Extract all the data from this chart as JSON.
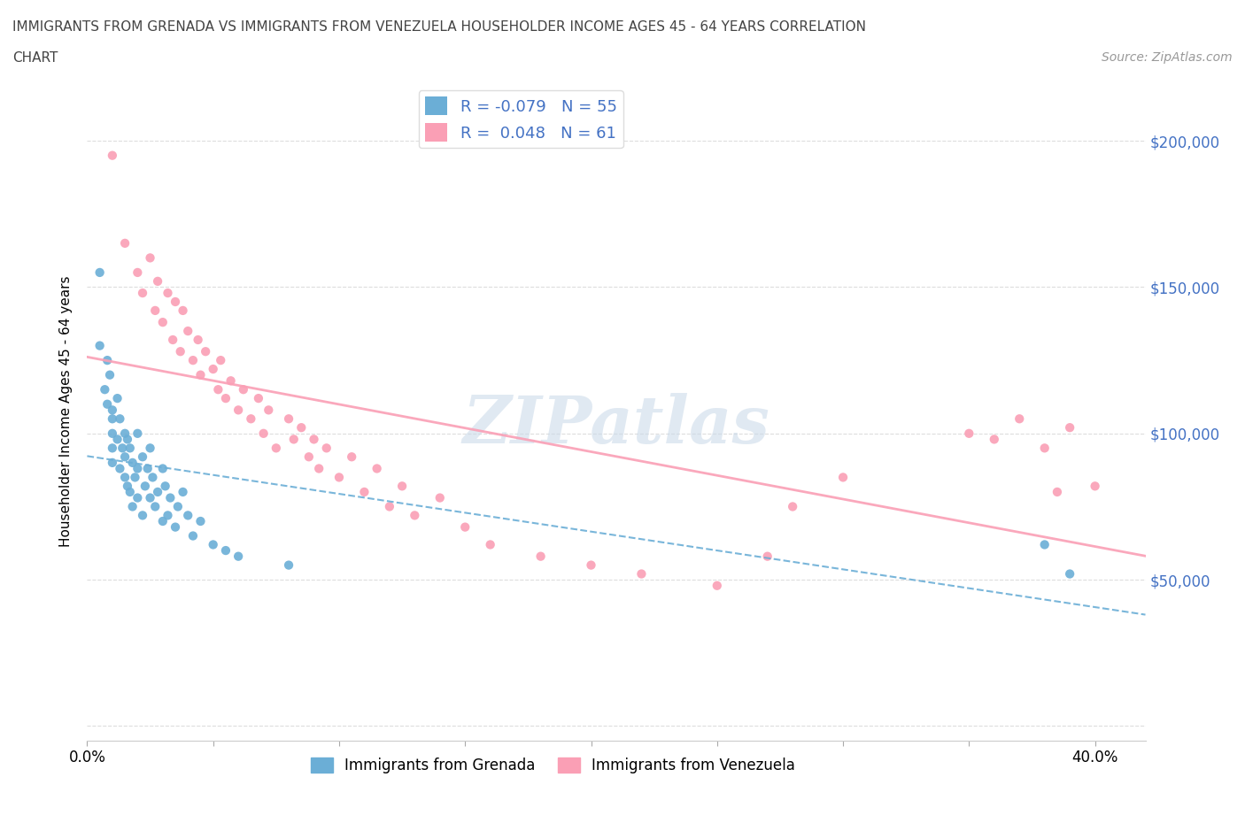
{
  "title_line1": "IMMIGRANTS FROM GRENADA VS IMMIGRANTS FROM VENEZUELA HOUSEHOLDER INCOME AGES 45 - 64 YEARS CORRELATION",
  "title_line2": "CHART",
  "source": "Source: ZipAtlas.com",
  "ylabel": "Householder Income Ages 45 - 64 years",
  "xlim": [
    0.0,
    0.42
  ],
  "ylim": [
    -5000,
    220000
  ],
  "yticks": [
    0,
    50000,
    100000,
    150000,
    200000
  ],
  "ytick_labels": [
    "",
    "$50,000",
    "$100,000",
    "$150,000",
    "$200,000"
  ],
  "xticks": [
    0.0,
    0.05,
    0.1,
    0.15,
    0.2,
    0.25,
    0.3,
    0.35,
    0.4
  ],
  "xtick_labels": [
    "0.0%",
    "",
    "",
    "",
    "",
    "",
    "",
    "",
    "40.0%"
  ],
  "grenada_color": "#6baed6",
  "venezuela_color": "#fa9fb5",
  "grenada_R": -0.079,
  "grenada_N": 55,
  "venezuela_R": 0.048,
  "venezuela_N": 61,
  "watermark": "ZIPatlas",
  "grenada_x": [
    0.005,
    0.005,
    0.007,
    0.008,
    0.008,
    0.009,
    0.01,
    0.01,
    0.01,
    0.01,
    0.01,
    0.012,
    0.012,
    0.013,
    0.013,
    0.014,
    0.015,
    0.015,
    0.015,
    0.016,
    0.016,
    0.017,
    0.017,
    0.018,
    0.018,
    0.019,
    0.02,
    0.02,
    0.02,
    0.022,
    0.022,
    0.023,
    0.024,
    0.025,
    0.025,
    0.026,
    0.027,
    0.028,
    0.03,
    0.03,
    0.031,
    0.032,
    0.033,
    0.035,
    0.036,
    0.038,
    0.04,
    0.042,
    0.045,
    0.05,
    0.055,
    0.06,
    0.08,
    0.38,
    0.39
  ],
  "grenada_y": [
    155000,
    130000,
    115000,
    125000,
    110000,
    120000,
    105000,
    100000,
    95000,
    108000,
    90000,
    112000,
    98000,
    105000,
    88000,
    95000,
    100000,
    92000,
    85000,
    98000,
    82000,
    95000,
    80000,
    90000,
    75000,
    85000,
    100000,
    88000,
    78000,
    92000,
    72000,
    82000,
    88000,
    78000,
    95000,
    85000,
    75000,
    80000,
    88000,
    70000,
    82000,
    72000,
    78000,
    68000,
    75000,
    80000,
    72000,
    65000,
    70000,
    62000,
    60000,
    58000,
    55000,
    62000,
    52000
  ],
  "venezuela_x": [
    0.01,
    0.015,
    0.02,
    0.022,
    0.025,
    0.027,
    0.028,
    0.03,
    0.032,
    0.034,
    0.035,
    0.037,
    0.038,
    0.04,
    0.042,
    0.044,
    0.045,
    0.047,
    0.05,
    0.052,
    0.053,
    0.055,
    0.057,
    0.06,
    0.062,
    0.065,
    0.068,
    0.07,
    0.072,
    0.075,
    0.08,
    0.082,
    0.085,
    0.088,
    0.09,
    0.092,
    0.095,
    0.1,
    0.105,
    0.11,
    0.115,
    0.12,
    0.125,
    0.13,
    0.14,
    0.15,
    0.16,
    0.18,
    0.2,
    0.22,
    0.25,
    0.27,
    0.28,
    0.3,
    0.35,
    0.36,
    0.37,
    0.38,
    0.385,
    0.39,
    0.4
  ],
  "venezuela_y": [
    195000,
    165000,
    155000,
    148000,
    160000,
    142000,
    152000,
    138000,
    148000,
    132000,
    145000,
    128000,
    142000,
    135000,
    125000,
    132000,
    120000,
    128000,
    122000,
    115000,
    125000,
    112000,
    118000,
    108000,
    115000,
    105000,
    112000,
    100000,
    108000,
    95000,
    105000,
    98000,
    102000,
    92000,
    98000,
    88000,
    95000,
    85000,
    92000,
    80000,
    88000,
    75000,
    82000,
    72000,
    78000,
    68000,
    62000,
    58000,
    55000,
    52000,
    48000,
    58000,
    75000,
    85000,
    100000,
    98000,
    105000,
    95000,
    80000,
    102000,
    82000
  ]
}
